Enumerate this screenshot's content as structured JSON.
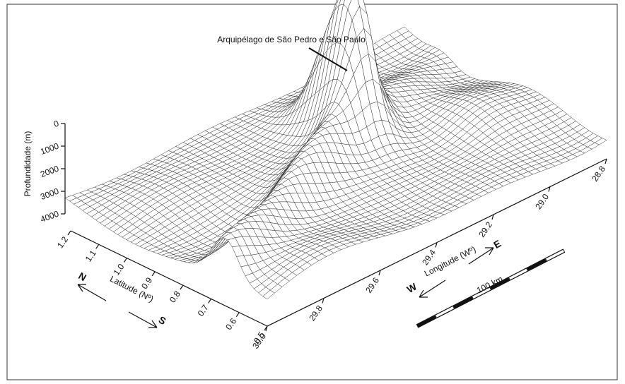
{
  "chart_data": {
    "type": "surface3d",
    "annotation": "Arquipélago de São Pedro e São Paulo",
    "zlabel": "Profundidade (m)",
    "zlim": [
      0,
      4000
    ],
    "zticks": [
      0,
      1000,
      2000,
      3000,
      4000
    ],
    "ylabel": "Latitude (Nº)",
    "ylim": [
      1.2,
      0.5
    ],
    "yticks": [
      1.2,
      1.1,
      {
        "value": 1,
        "label": "1.0"
      },
      0.9,
      0.8,
      0.7,
      0.6,
      0.5
    ],
    "xlabel": "Longitude (Wº)",
    "xlim": [
      30,
      28.8
    ],
    "xticks": [
      {
        "value": 30,
        "label": "30.0"
      },
      29.8,
      29.6,
      29.4,
      29.2,
      {
        "value": 29,
        "label": "29.0"
      },
      28.8
    ],
    "compass": {
      "north": "N",
      "south": "S",
      "west": "W",
      "east": "E"
    },
    "scale_bar": "100 km"
  }
}
